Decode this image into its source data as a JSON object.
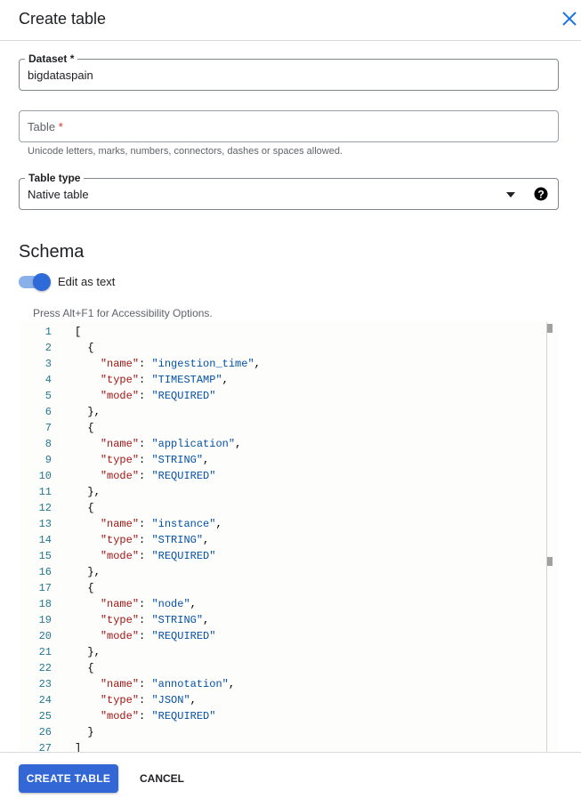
{
  "header": {
    "title": "Create table"
  },
  "dataset": {
    "label": "Dataset *",
    "value": "bigdataspain"
  },
  "table": {
    "placeholder": "Table",
    "required": "*",
    "hint": "Unicode letters, marks, numbers, connectors, dashes or spaces allowed."
  },
  "table_type": {
    "label": "Table type",
    "value": "Native table"
  },
  "schema": {
    "heading": "Schema",
    "toggle_label": "Edit as text",
    "toggle_on": true,
    "a11y_hint": "Press Alt+F1 for Accessibility Options."
  },
  "editor": {
    "lines": [
      "[",
      "  {",
      "    \"name\": \"ingestion_time\",",
      "    \"type\": \"TIMESTAMP\",",
      "    \"mode\": \"REQUIRED\"",
      "  },",
      "  {",
      "    \"name\": \"application\",",
      "    \"type\": \"STRING\",",
      "    \"mode\": \"REQUIRED\"",
      "  },",
      "  {",
      "    \"name\": \"instance\",",
      "    \"type\": \"STRING\",",
      "    \"mode\": \"REQUIRED\"",
      "  },",
      "  {",
      "    \"name\": \"node\",",
      "    \"type\": \"STRING\",",
      "    \"mode\": \"REQUIRED\"",
      "  },",
      "  {",
      "    \"name\": \"annotation\",",
      "    \"type\": \"JSON\",",
      "    \"mode\": \"REQUIRED\"",
      "  }",
      "]"
    ]
  },
  "footer": {
    "create_label": "CREATE TABLE",
    "cancel_label": "CANCEL"
  },
  "colors": {
    "primary": "#3367d6",
    "key": "#a31515",
    "string": "#0451a5",
    "line_number": "#237893"
  }
}
